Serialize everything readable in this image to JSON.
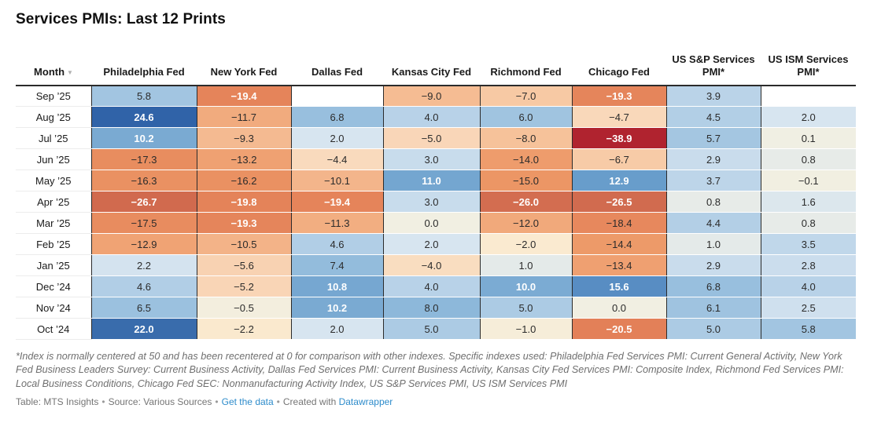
{
  "title": "Services PMIs: Last 12 Prints",
  "chart_data": {
    "type": "heatmap",
    "title": "Services PMIs: Last 12 Prints",
    "row_header": "Month",
    "columns": [
      "Philadelphia Fed",
      "New York Fed",
      "Dallas Fed",
      "Kansas City Fed",
      "Richmond Fed",
      "Chicago Fed",
      "US S&P Services PMI*",
      "US ISM Services PMI*"
    ],
    "rows": [
      "Sep ’25",
      "Aug ’25",
      "Jul ’25",
      "Jun ’25",
      "May ’25",
      "Apr ’25",
      "Mar ’25",
      "Feb ’25",
      "Jan ’25",
      "Dec ’24",
      "Nov ’24",
      "Oct ’24"
    ],
    "values": [
      [
        5.8,
        -19.4,
        null,
        -9.0,
        -7.0,
        -19.3,
        3.9,
        null
      ],
      [
        24.6,
        -11.7,
        6.8,
        4.0,
        6.0,
        -4.7,
        4.5,
        2.0
      ],
      [
        10.2,
        -9.3,
        2.0,
        -5.0,
        -8.0,
        -38.9,
        5.7,
        0.1
      ],
      [
        -17.3,
        -13.2,
        -4.4,
        3.0,
        -14.0,
        -6.7,
        2.9,
        0.8
      ],
      [
        -16.3,
        -16.2,
        -10.1,
        11.0,
        -15.0,
        12.9,
        3.7,
        -0.1
      ],
      [
        -26.7,
        -19.8,
        -19.4,
        3.0,
        -26.0,
        -26.5,
        0.8,
        1.6
      ],
      [
        -17.5,
        -19.3,
        -11.3,
        0.0,
        -12.0,
        -18.4,
        4.4,
        0.8
      ],
      [
        -12.9,
        -10.5,
        4.6,
        2.0,
        -2.0,
        -14.4,
        1.0,
        3.5
      ],
      [
        2.2,
        -5.6,
        7.4,
        -4.0,
        1.0,
        -13.4,
        2.9,
        2.8
      ],
      [
        4.6,
        -5.2,
        10.8,
        4.0,
        10.0,
        15.6,
        6.8,
        4.0
      ],
      [
        6.5,
        -0.5,
        10.2,
        8.0,
        5.0,
        0.0,
        6.1,
        2.5
      ],
      [
        22.0,
        -2.2,
        2.0,
        5.0,
        -1.0,
        -20.5,
        5.0,
        5.8
      ]
    ],
    "value_domain": [
      -38.9,
      24.6
    ],
    "color_scale": {
      "negative_max": "#b0222f",
      "neutral": "#f1efe2",
      "positive_max": "#2f62a7"
    },
    "legend_position": "none",
    "grid": "column-rules"
  },
  "sort_icon": "▼",
  "footnote": "*Index is normally centered at 50 and has been recentered at 0 for comparison with other indexes. Specific indexes used: Philadelphia Fed Services PMI: Current General Activity, New York Fed Business Leaders Survey: Current Business Activity, Dallas Fed Services PMI: Current Business Activity, Kansas City Fed Services PMI: Composite Index, Richmond Fed Services PMI: Local Business Conditions, Chicago Fed SEC: Nonmanufacturing Activity Index, US S&P Services PMI, US ISM Services PMI",
  "credit": {
    "table_label": "Table: MTS Insights",
    "source_label": "Source: Various Sources",
    "get_data_link": "Get the data",
    "created_with": "Created with",
    "datawrapper_link": "Datawrapper",
    "separator": "•"
  }
}
